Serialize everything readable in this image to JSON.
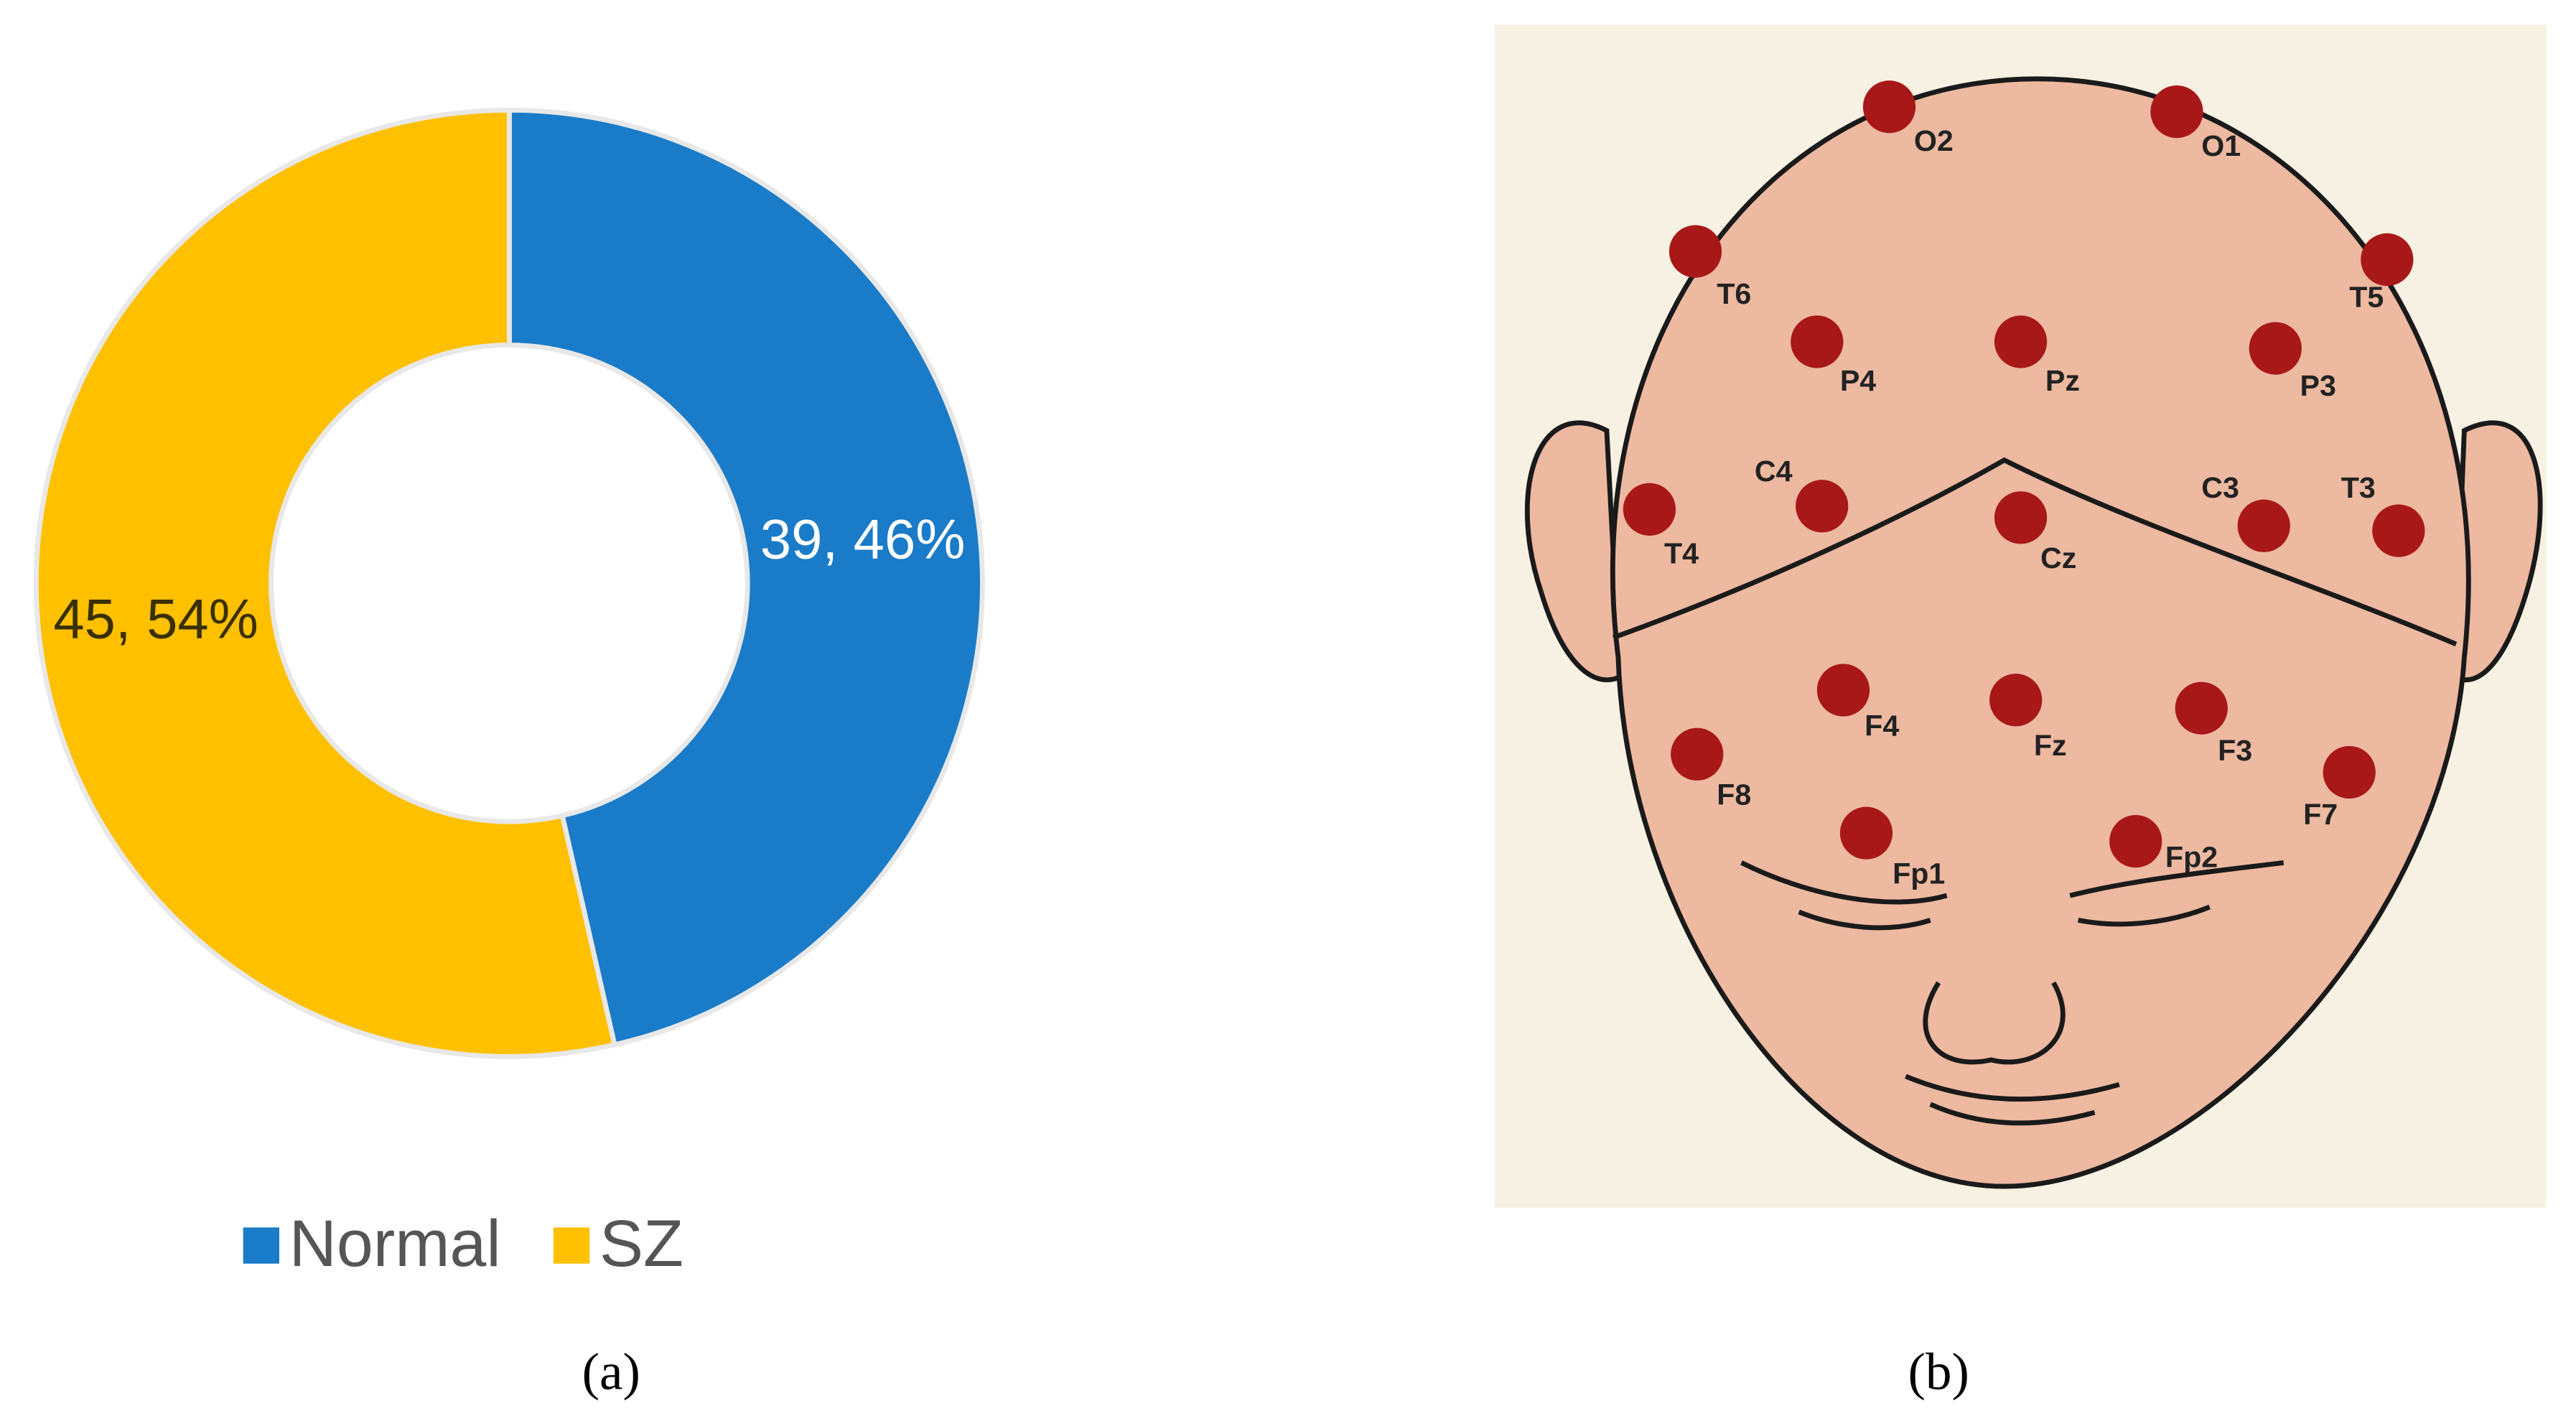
{
  "chart_data": {
    "type": "donut",
    "categories": [
      "Normal",
      "SZ"
    ],
    "values": [
      39,
      45
    ],
    "value_labels": [
      "39, 46%",
      "45, 54%"
    ],
    "colors": [
      "#1a7bc8",
      "#ffc000"
    ],
    "legend": "bottom"
  },
  "diagram": {
    "electrodes": [
      {
        "label": "O2"
      },
      {
        "label": "O1"
      },
      {
        "label": "T6"
      },
      {
        "label": "T5"
      },
      {
        "label": "P4"
      },
      {
        "label": "Pz"
      },
      {
        "label": "P3"
      },
      {
        "label": "C4"
      },
      {
        "label": "C3"
      },
      {
        "label": "T4"
      },
      {
        "label": "T3"
      },
      {
        "label": "Cz"
      },
      {
        "label": "F4"
      },
      {
        "label": "Fz"
      },
      {
        "label": "F3"
      },
      {
        "label": "F8"
      },
      {
        "label": "F7"
      },
      {
        "label": "Fp1"
      },
      {
        "label": "Fp2"
      }
    ]
  },
  "captions": [
    "(a)",
    "(b)"
  ]
}
